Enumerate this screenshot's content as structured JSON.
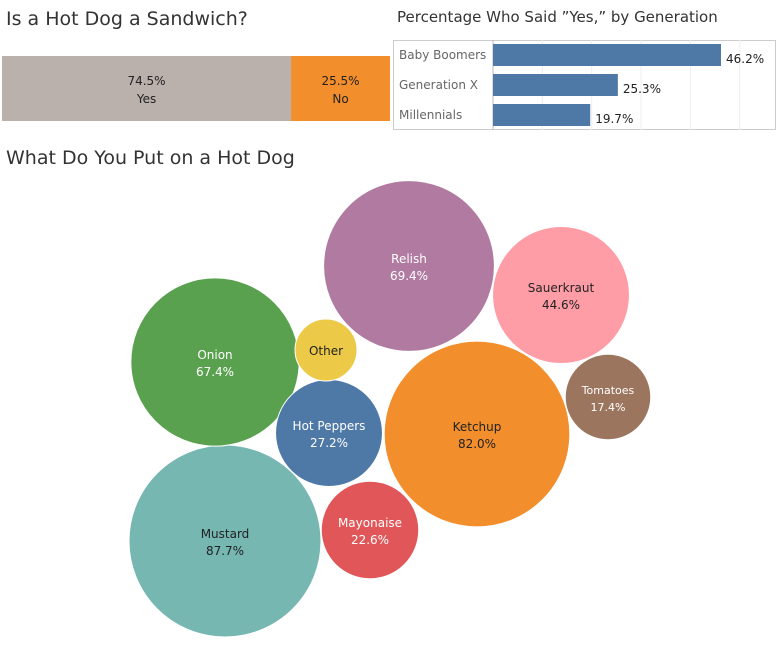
{
  "titles": {
    "sandwich": "Is a Hot Dog a Sandwich?",
    "generation": "Percentage Who Said ”Yes,” by Generation",
    "toppings": "What Do You Put on a Hot Dog"
  },
  "chart_data": [
    {
      "type": "bar",
      "orientation": "stacked-horizontal",
      "title": "Is a Hot Dog a Sandwich?",
      "categories": [
        "Yes",
        "No"
      ],
      "values": [
        74.5,
        25.5
      ],
      "value_labels": [
        "74.5%",
        "25.5%"
      ],
      "colors": [
        "#bab0ac",
        "#f28e2b"
      ],
      "grid": true
    },
    {
      "type": "bar",
      "orientation": "horizontal",
      "title": "Percentage Who Said ”Yes,” by Generation",
      "categories": [
        "Baby Boomers",
        "Generation X",
        "Millennials"
      ],
      "values": [
        46.2,
        25.3,
        19.7
      ],
      "value_labels": [
        "46.2%",
        "25.3%",
        "19.7%"
      ],
      "color": "#4e79a7",
      "grid": true
    },
    {
      "type": "bubble",
      "title": "What Do You Put on a Hot Dog",
      "items": [
        {
          "label": "Mustard",
          "value_label": "87.7%",
          "value": 87.7,
          "color": "#76b7b2",
          "text_color": "#222222"
        },
        {
          "label": "Ketchup",
          "value_label": "82.0%",
          "value": 82.0,
          "color": "#f28e2b",
          "text_color": "#222222"
        },
        {
          "label": "Relish",
          "value_label": "69.4%",
          "value": 69.4,
          "color": "#b07aa1",
          "text_color": "#ffffff"
        },
        {
          "label": "Onion",
          "value_label": "67.4%",
          "value": 67.4,
          "color": "#59a14f",
          "text_color": "#ffffff"
        },
        {
          "label": "Sauerkraut",
          "value_label": "44.6%",
          "value": 44.6,
          "color": "#ff9da7",
          "text_color": "#222222"
        },
        {
          "label": "Hot Peppers",
          "value_label": "27.2%",
          "value": 27.2,
          "color": "#4e79a7",
          "text_color": "#ffffff"
        },
        {
          "label": "Mayonaise",
          "value_label": "22.6%",
          "value": 22.6,
          "color": "#e15759",
          "text_color": "#ffffff"
        },
        {
          "label": "Tomatoes",
          "value_label": "17.4%",
          "value": 17.4,
          "color": "#9c755f",
          "text_color": "#ffffff"
        },
        {
          "label": "Other",
          "value_label": "",
          "value": null,
          "color": "#edc948",
          "text_color": "#222222"
        }
      ]
    }
  ]
}
